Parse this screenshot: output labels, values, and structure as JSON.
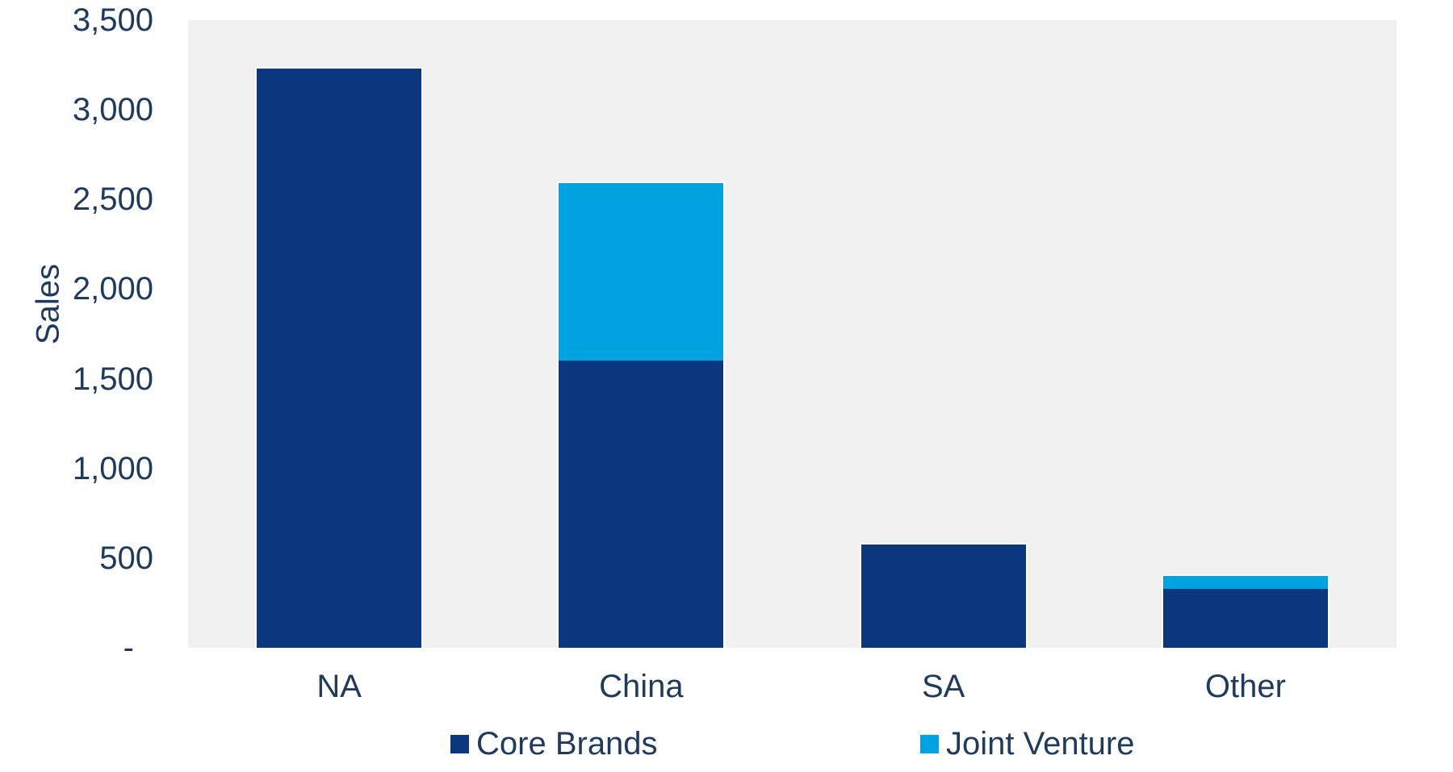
{
  "chart_data": {
    "type": "bar",
    "stacked": true,
    "title": "",
    "xlabel": "",
    "ylabel": "Sales",
    "categories": [
      "NA",
      "China",
      "SA",
      "Other"
    ],
    "series": [
      {
        "name": "Core Brands",
        "color": "#0A377D",
        "values": [
          3230,
          1600,
          575,
          330
        ]
      },
      {
        "name": "Joint Venture",
        "color": "#00A2E0",
        "values": [
          0,
          990,
          0,
          70
        ]
      }
    ],
    "totals": [
      3230,
      2590,
      575,
      400
    ],
    "ylim": [
      0,
      3500
    ],
    "ytick_step": 500,
    "ytick_values": [
      3500,
      3000,
      2500,
      2000,
      1500,
      1000,
      500,
      0
    ],
    "ytick_labels": [
      "3,500",
      "3,000",
      "2,500",
      "2,000",
      "1,500",
      "1,000",
      "500",
      "-"
    ],
    "grid": false,
    "legend_position": "bottom",
    "plot_background": "#F0F0F0",
    "page_background": "#FFFFFF",
    "text_color": "#1F3A5F"
  }
}
